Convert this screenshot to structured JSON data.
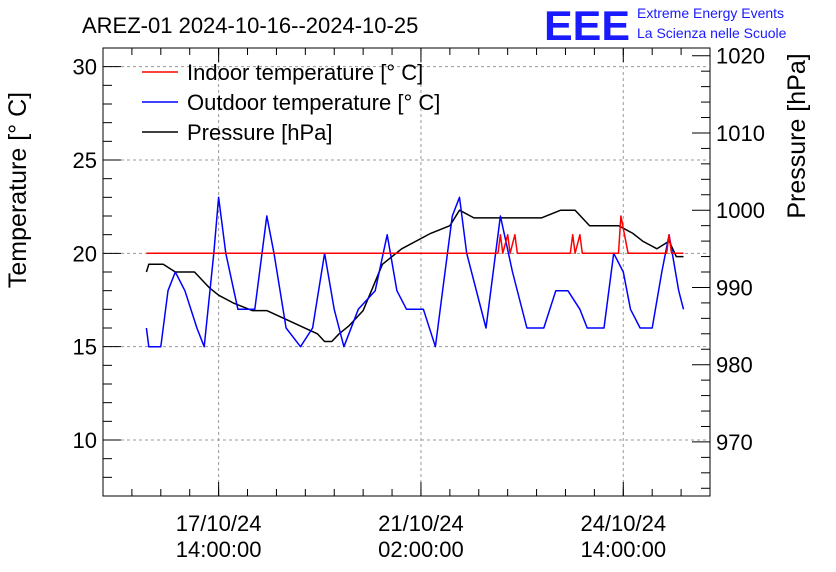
{
  "header": {
    "title": "AREZ-01 2024-10-16--2024-10-25",
    "logo": {
      "mark": "EEE",
      "line1": "Extreme Energy Events",
      "line2": "La Scienza nelle Scuole",
      "color": "#1a1aff"
    }
  },
  "chart_data": {
    "type": "line",
    "ylabel": "Temperature [° C]",
    "y2label": "Pressure [hPa]",
    "ylim": [
      7,
      31
    ],
    "y2lim": [
      963,
      1021
    ],
    "yticks": [
      "10",
      "15",
      "20",
      "25",
      "30"
    ],
    "y2ticks": [
      "970",
      "980",
      "990",
      "1000",
      "1010",
      "1020"
    ],
    "xlim": [
      "2024-10-15 14:00",
      "2024-10-26 02:00"
    ],
    "xticks": [
      {
        "date": "17/10/24",
        "time": "14:00:00"
      },
      {
        "date": "21/10/24",
        "time": "02:00:00"
      },
      {
        "date": "24/10/24",
        "time": "14:00:00"
      }
    ],
    "grid": true,
    "legend_position": "top-left",
    "series": [
      {
        "name": "Indoor temperature [° C]",
        "axis": "left",
        "color": "#ff0000",
        "points": [
          [
            "2024-10-16 08:00",
            20
          ],
          [
            "2024-10-22 10:00",
            20
          ],
          [
            "2024-10-22 11:00",
            21
          ],
          [
            "2024-10-22 12:00",
            20
          ],
          [
            "2024-10-22 14:00",
            21
          ],
          [
            "2024-10-22 15:00",
            20
          ],
          [
            "2024-10-22 17:00",
            21
          ],
          [
            "2024-10-22 18:00",
            20
          ],
          [
            "2024-10-23 16:00",
            20
          ],
          [
            "2024-10-23 17:00",
            21
          ],
          [
            "2024-10-23 18:00",
            20
          ],
          [
            "2024-10-23 20:00",
            21
          ],
          [
            "2024-10-23 21:00",
            20
          ],
          [
            "2024-10-24 12:00",
            20
          ],
          [
            "2024-10-24 13:00",
            22
          ],
          [
            "2024-10-24 16:00",
            20
          ],
          [
            "2024-10-25 08:00",
            20
          ],
          [
            "2024-10-25 09:00",
            21
          ],
          [
            "2024-10-25 10:00",
            20
          ],
          [
            "2024-10-25 15:00",
            20
          ]
        ]
      },
      {
        "name": "Outdoor temperature [° C]",
        "axis": "left",
        "color": "#0000ff",
        "points": [
          [
            "2024-10-16 08:00",
            16
          ],
          [
            "2024-10-16 09:00",
            15
          ],
          [
            "2024-10-16 14:00",
            15
          ],
          [
            "2024-10-16 17:00",
            18
          ],
          [
            "2024-10-16 20:00",
            19
          ],
          [
            "2024-10-17 00:00",
            18
          ],
          [
            "2024-10-17 05:00",
            16
          ],
          [
            "2024-10-17 08:00",
            15
          ],
          [
            "2024-10-17 12:00",
            20
          ],
          [
            "2024-10-17 14:00",
            23
          ],
          [
            "2024-10-17 17:00",
            20
          ],
          [
            "2024-10-17 22:00",
            17
          ],
          [
            "2024-10-18 05:00",
            17
          ],
          [
            "2024-10-18 10:00",
            22
          ],
          [
            "2024-10-18 13:00",
            20
          ],
          [
            "2024-10-18 18:00",
            16
          ],
          [
            "2024-10-19 00:00",
            15
          ],
          [
            "2024-10-19 05:00",
            16
          ],
          [
            "2024-10-19 10:00",
            20
          ],
          [
            "2024-10-19 14:00",
            17
          ],
          [
            "2024-10-19 18:00",
            15
          ],
          [
            "2024-10-20 00:00",
            17
          ],
          [
            "2024-10-20 07:00",
            18
          ],
          [
            "2024-10-20 12:00",
            21
          ],
          [
            "2024-10-20 16:00",
            18
          ],
          [
            "2024-10-20 20:00",
            17
          ],
          [
            "2024-10-21 03:00",
            17
          ],
          [
            "2024-10-21 08:00",
            15
          ],
          [
            "2024-10-21 11:00",
            18
          ],
          [
            "2024-10-21 15:00",
            22
          ],
          [
            "2024-10-21 18:00",
            23
          ],
          [
            "2024-10-21 21:00",
            20
          ],
          [
            "2024-10-22 05:00",
            16
          ],
          [
            "2024-10-22 11:00",
            22
          ],
          [
            "2024-10-22 16:00",
            19
          ],
          [
            "2024-10-22 22:00",
            16
          ],
          [
            "2024-10-23 05:00",
            16
          ],
          [
            "2024-10-23 10:00",
            18
          ],
          [
            "2024-10-23 15:00",
            18
          ],
          [
            "2024-10-23 20:00",
            17
          ],
          [
            "2024-10-23 23:00",
            16
          ],
          [
            "2024-10-24 06:00",
            16
          ],
          [
            "2024-10-24 10:00",
            20
          ],
          [
            "2024-10-24 14:00",
            19
          ],
          [
            "2024-10-24 17:00",
            17
          ],
          [
            "2024-10-24 21:00",
            16
          ],
          [
            "2024-10-25 02:00",
            16
          ],
          [
            "2024-10-25 06:00",
            19
          ],
          [
            "2024-10-25 09:00",
            21
          ],
          [
            "2024-10-25 13:00",
            18
          ],
          [
            "2024-10-25 15:00",
            17
          ]
        ]
      },
      {
        "name": "Pressure [hPa]",
        "axis": "right",
        "color": "#000000",
        "points": [
          [
            "2024-10-16 08:00",
            992
          ],
          [
            "2024-10-16 09:00",
            993
          ],
          [
            "2024-10-16 15:00",
            993
          ],
          [
            "2024-10-16 20:00",
            992
          ],
          [
            "2024-10-17 04:00",
            992
          ],
          [
            "2024-10-17 10:00",
            990
          ],
          [
            "2024-10-17 14:00",
            989
          ],
          [
            "2024-10-17 20:00",
            988
          ],
          [
            "2024-10-18 04:00",
            987
          ],
          [
            "2024-10-18 10:00",
            987
          ],
          [
            "2024-10-18 17:00",
            986
          ],
          [
            "2024-10-19 00:00",
            985
          ],
          [
            "2024-10-19 07:00",
            984
          ],
          [
            "2024-10-19 10:00",
            983
          ],
          [
            "2024-10-19 13:00",
            983
          ],
          [
            "2024-10-19 16:00",
            984
          ],
          [
            "2024-10-19 20:00",
            985
          ],
          [
            "2024-10-20 02:00",
            987
          ],
          [
            "2024-10-20 06:00",
            990
          ],
          [
            "2024-10-20 10:00",
            993
          ],
          [
            "2024-10-20 18:00",
            995
          ],
          [
            "2024-10-21 06:00",
            997
          ],
          [
            "2024-10-21 14:00",
            998
          ],
          [
            "2024-10-21 18:00",
            1000
          ],
          [
            "2024-10-22 00:00",
            999
          ],
          [
            "2024-10-22 06:00",
            999
          ],
          [
            "2024-10-22 12:00",
            999
          ],
          [
            "2024-10-22 18:00",
            999
          ],
          [
            "2024-10-23 04:00",
            999
          ],
          [
            "2024-10-23 12:00",
            1000
          ],
          [
            "2024-10-23 18:00",
            1000
          ],
          [
            "2024-10-24 00:00",
            998
          ],
          [
            "2024-10-24 06:00",
            998
          ],
          [
            "2024-10-24 12:00",
            998
          ],
          [
            "2024-10-24 18:00",
            997
          ],
          [
            "2024-10-24 22:00",
            996
          ],
          [
            "2024-10-25 04:00",
            995
          ],
          [
            "2024-10-25 09:00",
            996
          ],
          [
            "2024-10-25 12:00",
            994
          ],
          [
            "2024-10-25 15:00",
            994
          ]
        ]
      }
    ]
  }
}
